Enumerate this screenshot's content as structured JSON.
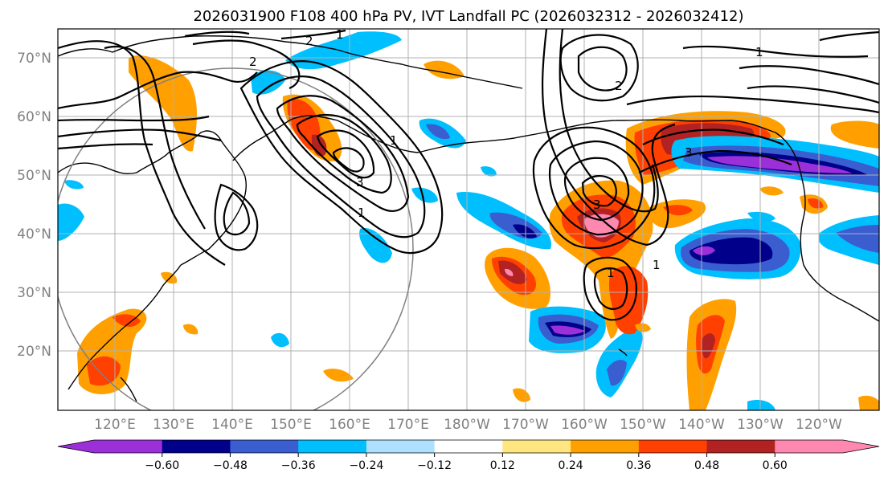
{
  "title": "2026031900 F108 400 hPa PV, IVT Landfall PC (2026032312 - 2026032412)",
  "latitude_labels": [
    "70°N",
    "60°N",
    "50°N",
    "40°N",
    "30°N",
    "20°N"
  ],
  "longitude_labels": [
    "120°E",
    "130°E",
    "140°E",
    "150°E",
    "160°E",
    "170°E",
    "180°W",
    "170°W",
    "160°W",
    "150°W",
    "140°W",
    "130°W",
    "120°W"
  ],
  "colorbar": {
    "tick_labels": [
      "−0.60",
      "−0.48",
      "−0.36",
      "−0.24",
      "−0.12",
      "0.12",
      "0.24",
      "0.36",
      "0.48",
      "0.60"
    ],
    "colors": [
      "#9b30d8",
      "#00008b",
      "#3a5ed0",
      "#00bfff",
      "#b0e0ff",
      "#ffffff",
      "#ffe680",
      "#ffa000",
      "#ff4000",
      "#b22222",
      "#ff88b0"
    ]
  },
  "contour_labels": [
    "1",
    "2",
    "3",
    "1",
    "2",
    "3",
    "1",
    "2",
    "3",
    "1",
    "1",
    "1"
  ]
}
